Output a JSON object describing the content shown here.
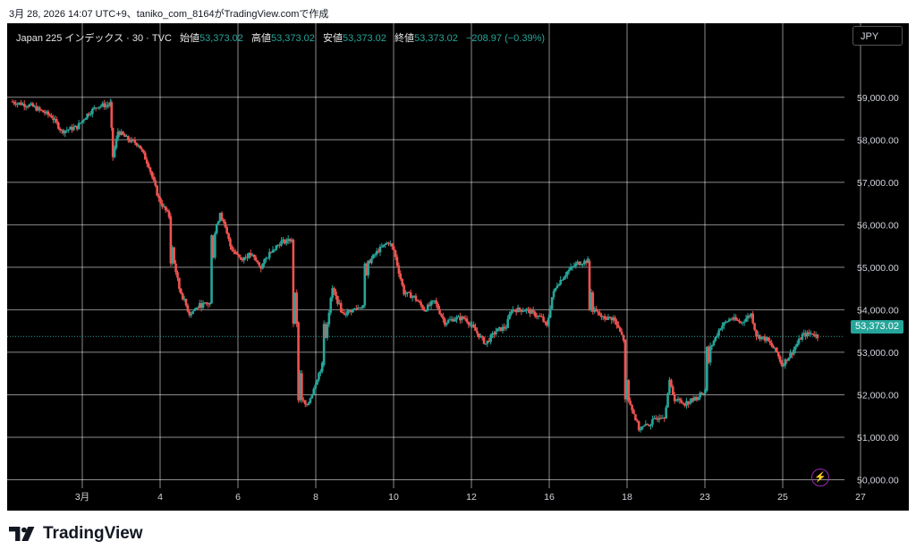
{
  "header": {
    "text": "3月 28, 2026 14:07 UTC+9、taniko_com_8164がTradingView.comで作成"
  },
  "legend": {
    "symbol": "Japan 225 インデックス · 30 · TVC",
    "open_label": "始値",
    "open": "53,373.02",
    "high_label": "高値",
    "high": "53,373.02",
    "low_label": "安値",
    "low": "53,373.02",
    "close_label": "終値",
    "close": "53,373.02",
    "change": "−208.97 (−0.39%)"
  },
  "currency_button": "JPY",
  "last_price": "53,373.02",
  "flash_icon": "lightning-icon",
  "brand": {
    "name": "TradingView",
    "logo_icon": "tradingview-logo-icon"
  },
  "colors": {
    "up": "#26a69a",
    "down": "#ef5350",
    "background": "#000000",
    "grid": "#ffffff",
    "accent": "#9c27b0"
  },
  "chart_data": {
    "type": "candlestick",
    "interval": "30",
    "y_ticks": [
      "59,000.00",
      "58,000.00",
      "57,000.00",
      "56,000.00",
      "55,000.00",
      "54,000.00",
      "53,000.00",
      "52,000.00",
      "51,000.00",
      "50,000.00"
    ],
    "y_range": [
      49800,
      59900
    ],
    "x_ticks": [
      "3月",
      "4",
      "6",
      "8",
      "10",
      "12",
      "16",
      "18",
      "23",
      "25",
      "27"
    ],
    "grid": true,
    "last_value": 53373.02,
    "path": [
      [
        0,
        58900
      ],
      [
        4,
        58800
      ],
      [
        8,
        58550
      ],
      [
        10,
        58200
      ],
      [
        13,
        58300
      ],
      [
        15,
        58600
      ],
      [
        17,
        58800
      ],
      [
        19,
        58820
      ],
      [
        19.5,
        58850
      ],
      [
        20,
        57600
      ],
      [
        21,
        58200
      ],
      [
        23,
        58000
      ],
      [
        25,
        57900
      ],
      [
        27,
        57400
      ],
      [
        29,
        56600
      ],
      [
        31,
        56200
      ],
      [
        32,
        55100
      ],
      [
        33,
        54500
      ],
      [
        35,
        53900
      ],
      [
        37,
        54100
      ],
      [
        39,
        54150
      ],
      [
        40,
        55800
      ],
      [
        41,
        56300
      ],
      [
        43,
        55500
      ],
      [
        45,
        55200
      ],
      [
        47,
        55300
      ],
      [
        49,
        55000
      ],
      [
        51,
        55400
      ],
      [
        53,
        55600
      ],
      [
        55,
        55650
      ],
      [
        56,
        53700
      ],
      [
        57,
        51900
      ],
      [
        58,
        51700
      ],
      [
        60,
        52400
      ],
      [
        61,
        52700
      ],
      [
        62,
        53700
      ],
      [
        63,
        54500
      ],
      [
        65,
        53900
      ],
      [
        67,
        54000
      ],
      [
        69,
        54100
      ],
      [
        70,
        55100
      ],
      [
        72,
        55400
      ],
      [
        74,
        55600
      ],
      [
        75,
        55400
      ],
      [
        76,
        54900
      ],
      [
        77,
        54400
      ],
      [
        79,
        54300
      ],
      [
        81,
        54000
      ],
      [
        83,
        54200
      ],
      [
        85,
        53700
      ],
      [
        87,
        53800
      ],
      [
        89,
        53800
      ],
      [
        91,
        53500
      ],
      [
        93,
        53200
      ],
      [
        95,
        53500
      ],
      [
        97,
        53600
      ],
      [
        98,
        54000
      ],
      [
        101,
        54000
      ],
      [
        104,
        53800
      ],
      [
        105,
        53600
      ],
      [
        106,
        54300
      ],
      [
        107,
        54600
      ],
      [
        109,
        54900
      ],
      [
        111,
        55100
      ],
      [
        113,
        55150
      ],
      [
        114,
        54000
      ],
      [
        116,
        53800
      ],
      [
        118,
        53800
      ],
      [
        120,
        53300
      ],
      [
        121,
        51900
      ],
      [
        123,
        51200
      ],
      [
        125,
        51300
      ],
      [
        127,
        51500
      ],
      [
        128,
        51500
      ],
      [
        129,
        52300
      ],
      [
        130,
        51900
      ],
      [
        132,
        51800
      ],
      [
        134,
        51900
      ],
      [
        136,
        52100
      ],
      [
        137,
        53100
      ],
      [
        139,
        53600
      ],
      [
        141,
        53800
      ],
      [
        143,
        53700
      ],
      [
        145,
        53900
      ],
      [
        146,
        53400
      ],
      [
        148,
        53300
      ],
      [
        150,
        53000
      ],
      [
        151,
        52700
      ],
      [
        153,
        53000
      ],
      [
        155,
        53400
      ],
      [
        157,
        53450
      ],
      [
        158,
        53373
      ]
    ]
  }
}
